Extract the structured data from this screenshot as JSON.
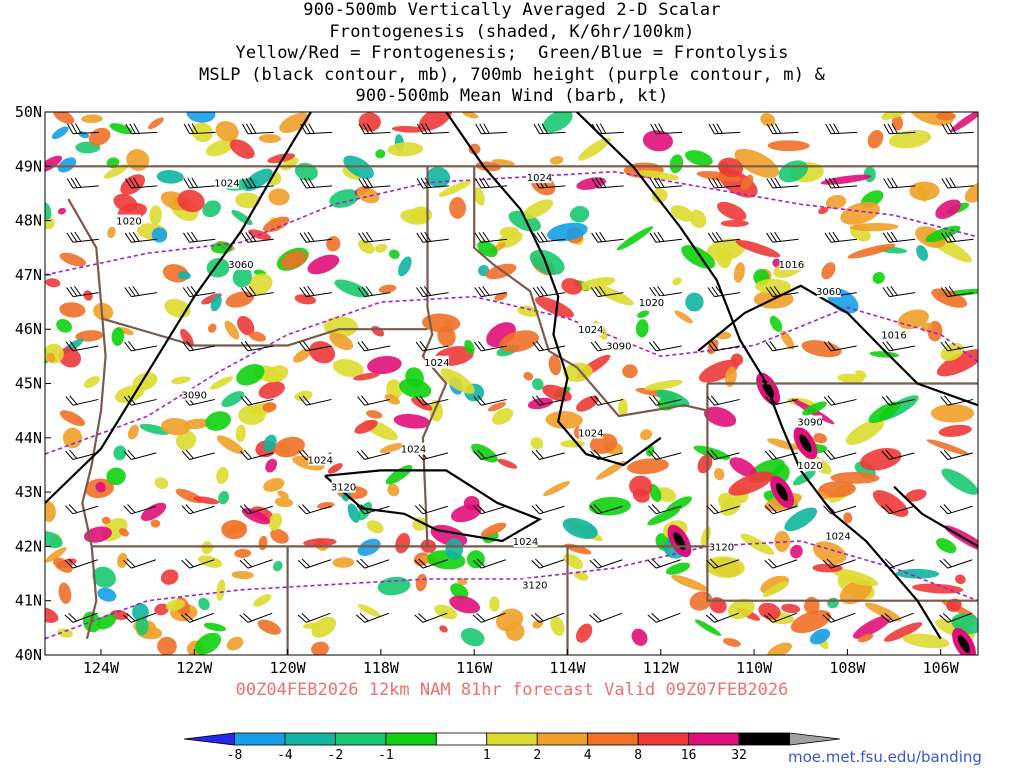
{
  "title": {
    "lines": [
      "900-500mb Vertically Averaged 2-D Scalar",
      "Frontogenesis (shaded, K/6hr/100km)",
      "Yellow/Red = Frontogenesis;  Green/Blue = Frontolysis",
      "MSLP (black contour, mb), 700mb height (purple contour, m) &",
      "900-500mb Mean Wind (barb, kt)"
    ]
  },
  "map": {
    "lat_labels": [
      "50N",
      "49N",
      "48N",
      "47N",
      "46N",
      "45N",
      "44N",
      "43N",
      "42N",
      "41N",
      "40N"
    ],
    "lon_labels": [
      "124W",
      "122W",
      "120W",
      "118W",
      "116W",
      "114W",
      "112W",
      "110W",
      "108W",
      "106W"
    ],
    "lat_range": [
      40,
      50
    ],
    "lon_range": [
      -125.2,
      -105.2
    ],
    "colors": {
      "state_border": "#7a5a48",
      "mslp_contour": "#000000",
      "height_contour": "#a020d0",
      "barb": "#000000"
    },
    "mslp_labels": [
      {
        "text": "1024",
        "lon": -121.3,
        "lat": 48.7
      },
      {
        "text": "1020",
        "lon": -123.4,
        "lat": 48.0
      },
      {
        "text": "1024",
        "lon": -114.6,
        "lat": 48.8
      },
      {
        "text": "1016",
        "lon": -109.2,
        "lat": 47.2
      },
      {
        "text": "1020",
        "lon": -112.2,
        "lat": 46.5
      },
      {
        "text": "1024",
        "lon": -113.5,
        "lat": 46.0
      },
      {
        "text": "1016",
        "lon": -107.0,
        "lat": 45.9
      },
      {
        "text": "1024",
        "lon": -116.8,
        "lat": 45.4
      },
      {
        "text": "1024",
        "lon": -113.5,
        "lat": 44.1
      },
      {
        "text": "1024",
        "lon": -119.3,
        "lat": 43.6
      },
      {
        "text": "1024",
        "lon": -117.3,
        "lat": 43.8
      },
      {
        "text": "1020",
        "lon": -108.8,
        "lat": 43.5
      },
      {
        "text": "1024",
        "lon": -114.9,
        "lat": 42.1
      },
      {
        "text": "1024",
        "lon": -108.2,
        "lat": 42.2
      }
    ],
    "height_labels": [
      {
        "text": "3060",
        "lon": -121.0,
        "lat": 47.2
      },
      {
        "text": "3060",
        "lon": -108.4,
        "lat": 46.7
      },
      {
        "text": "3090",
        "lon": -112.9,
        "lat": 45.7
      },
      {
        "text": "3090",
        "lon": -122.0,
        "lat": 44.8
      },
      {
        "text": "3090",
        "lon": -108.8,
        "lat": 44.3
      },
      {
        "text": "3120",
        "lon": -118.8,
        "lat": 43.1
      },
      {
        "text": "3120",
        "lon": -110.7,
        "lat": 42.0
      },
      {
        "text": "3120",
        "lon": -114.7,
        "lat": 41.3
      }
    ]
  },
  "colorbar": {
    "ticks": [
      "-8",
      "-4",
      "-2",
      "-1",
      "1",
      "2",
      "4",
      "8",
      "16",
      "32"
    ],
    "colors": [
      "#2828e8",
      "#14a0e6",
      "#10b4a0",
      "#18c870",
      "#10d010",
      "#ffffff",
      "#dcdc30",
      "#f0a028",
      "#f07028",
      "#f03838",
      "#e0107a",
      "#000000",
      "#a0a0a0"
    ]
  },
  "valid_text": "00Z04FEB2026 12km NAM 81hr forecast Valid 09Z07FEB2026",
  "credit": "moe.met.fsu.edu/banding"
}
